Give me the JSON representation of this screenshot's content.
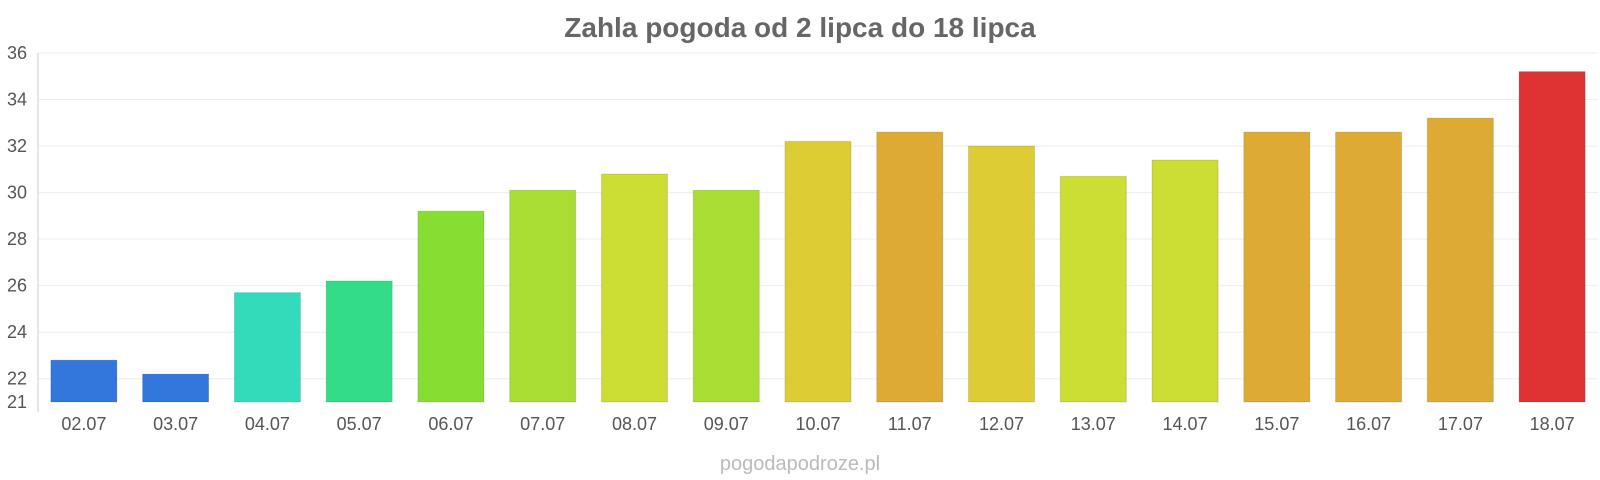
{
  "chart_data": {
    "type": "bar",
    "title": "Zahla pogoda od 2 lipca do 18 lipca",
    "xlabel": "",
    "ylabel": "",
    "categories": [
      "02.07",
      "03.07",
      "04.07",
      "05.07",
      "06.07",
      "07.07",
      "08.07",
      "09.07",
      "10.07",
      "11.07",
      "12.07",
      "13.07",
      "14.07",
      "15.07",
      "16.07",
      "17.07",
      "18.07"
    ],
    "values": [
      22.8,
      22.2,
      25.7,
      26.2,
      29.2,
      30.1,
      30.8,
      30.1,
      32.2,
      32.6,
      32.0,
      30.7,
      31.4,
      32.6,
      32.6,
      33.2,
      35.2
    ],
    "colors": [
      "#3377dd",
      "#3377dd",
      "#33dbbb",
      "#33dd88",
      "#88dd33",
      "#aadd33",
      "#ccdd33",
      "#aadd33",
      "#ddcc33",
      "#ddaa33",
      "#ddcc33",
      "#ccdd33",
      "#ccdd33",
      "#ddaa33",
      "#ddaa33",
      "#ddaa33",
      "#dd3333"
    ],
    "ylim": [
      21,
      36
    ],
    "yticks": [
      21,
      22,
      24,
      26,
      28,
      30,
      32,
      34,
      36
    ],
    "grid": true,
    "legend": "none",
    "watermark": "pogodapodroze.pl"
  }
}
